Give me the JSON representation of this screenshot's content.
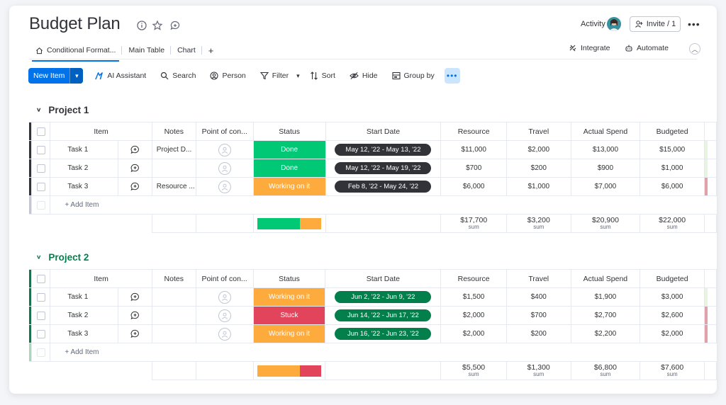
{
  "header": {
    "title": "Budget Plan",
    "activity_label": "Activity",
    "invite_label": "Invite / 1"
  },
  "tabs": [
    {
      "label": "Conditional Format..."
    },
    {
      "label": "Main Table"
    },
    {
      "label": "Chart"
    },
    {
      "label": "+"
    }
  ],
  "right_nav": {
    "integrate": "Integrate",
    "automate": "Automate"
  },
  "toolbar": {
    "new_item": "New Item",
    "ai_assistant": "AI Assistant",
    "search": "Search",
    "person": "Person",
    "filter": "Filter",
    "sort": "Sort",
    "hide": "Hide",
    "group_by": "Group by"
  },
  "columns": [
    "Item",
    "Notes",
    "Point of con...",
    "Status",
    "Start Date",
    "Resource",
    "Travel",
    "Actual Spend",
    "Budgeted"
  ],
  "colors": {
    "accent": "#0073ea",
    "done": "#00c875",
    "working": "#fdab3d",
    "stuck": "#e2445c",
    "project1": "#323338",
    "project2": "#037f4c"
  },
  "groups": [
    {
      "name": "Project 1",
      "add_item": "+ Add Item",
      "rows": [
        {
          "item": "Task 1",
          "notes": "Project D...",
          "status": "Done",
          "dates": "May 12, '22 - May 13, '22",
          "resource": "$11,000",
          "travel": "$2,000",
          "actual": "$13,000",
          "budgeted": "$15,000"
        },
        {
          "item": "Task 2",
          "notes": "",
          "status": "Done",
          "dates": "May 12, '22 - May 19, '22",
          "resource": "$700",
          "travel": "$200",
          "actual": "$900",
          "budgeted": "$1,000"
        },
        {
          "item": "Task 3",
          "notes": "Resource ...",
          "status": "Working on it",
          "dates": "Feb 8, '22 - May 24, '22",
          "resource": "$6,000",
          "travel": "$1,000",
          "actual": "$7,000",
          "budgeted": "$6,000"
        }
      ],
      "summary": {
        "resource": "$17,700",
        "travel": "$3,200",
        "actual": "$20,900",
        "budgeted": "$22,000",
        "sum_label": "sum",
        "status_split": {
          "done": 0.67,
          "working": 0.33
        }
      }
    },
    {
      "name": "Project 2",
      "add_item": "+ Add Item",
      "rows": [
        {
          "item": "Task 1",
          "notes": "",
          "status": "Working on it",
          "dates": "Jun 2, '22 - Jun 9, '22",
          "resource": "$1,500",
          "travel": "$400",
          "actual": "$1,900",
          "budgeted": "$3,000"
        },
        {
          "item": "Task 2",
          "notes": "",
          "status": "Stuck",
          "dates": "Jun 14, '22 - Jun 17, '22",
          "resource": "$2,000",
          "travel": "$700",
          "actual": "$2,700",
          "budgeted": "$2,600"
        },
        {
          "item": "Task 3",
          "notes": "",
          "status": "Working on it",
          "dates": "Jun 16, '22 - Jun 23, '22",
          "resource": "$2,000",
          "travel": "$200",
          "actual": "$2,200",
          "budgeted": "$2,000"
        }
      ],
      "summary": {
        "resource": "$5,500",
        "travel": "$1,300",
        "actual": "$6,800",
        "budgeted": "$7,600",
        "sum_label": "sum",
        "status_split": {
          "working": 0.67,
          "stuck": 0.33
        }
      }
    }
  ]
}
